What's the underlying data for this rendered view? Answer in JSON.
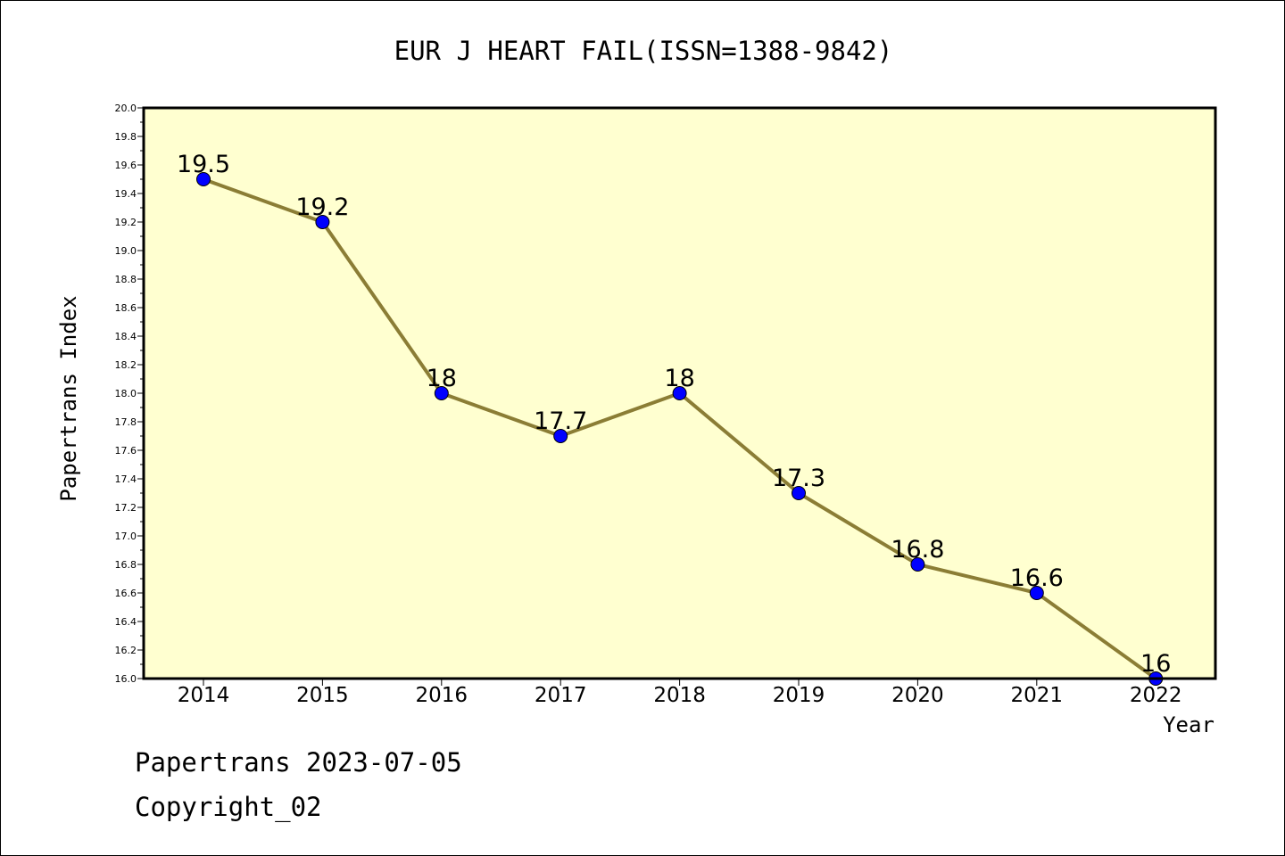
{
  "chart_data": {
    "type": "line",
    "title": "EUR J HEART FAIL(ISSN=1388-9842)",
    "xlabel": "Year",
    "ylabel": "Papertrans Index",
    "categories": [
      "2014",
      "2015",
      "2016",
      "2017",
      "2018",
      "2019",
      "2020",
      "2021",
      "2022"
    ],
    "series": [
      {
        "values": [
          19.5,
          19.2,
          18.0,
          17.7,
          18.0,
          17.3,
          16.8,
          16.6,
          16.0
        ],
        "data_labels": [
          "19.5",
          "19.2",
          "18",
          "17.7",
          "18",
          "17.3",
          "16.8",
          "16.6",
          "16"
        ],
        "line_color": "#8b7d35",
        "marker_color": "#0000ff"
      }
    ],
    "ylim": [
      16.0,
      20.0
    ],
    "yticks": [
      "16.0",
      "16.2",
      "16.4",
      "16.6",
      "16.8",
      "17.0",
      "17.2",
      "17.4",
      "17.6",
      "17.8",
      "18.0",
      "18.2",
      "18.4",
      "18.6",
      "18.8",
      "19.0",
      "19.2",
      "19.4",
      "19.6",
      "19.8",
      "20.0"
    ],
    "grid": false,
    "plot_background": "#ffffd0"
  },
  "footer": {
    "line1": "Papertrans 2023-07-05",
    "line2": "Copyright_02"
  }
}
